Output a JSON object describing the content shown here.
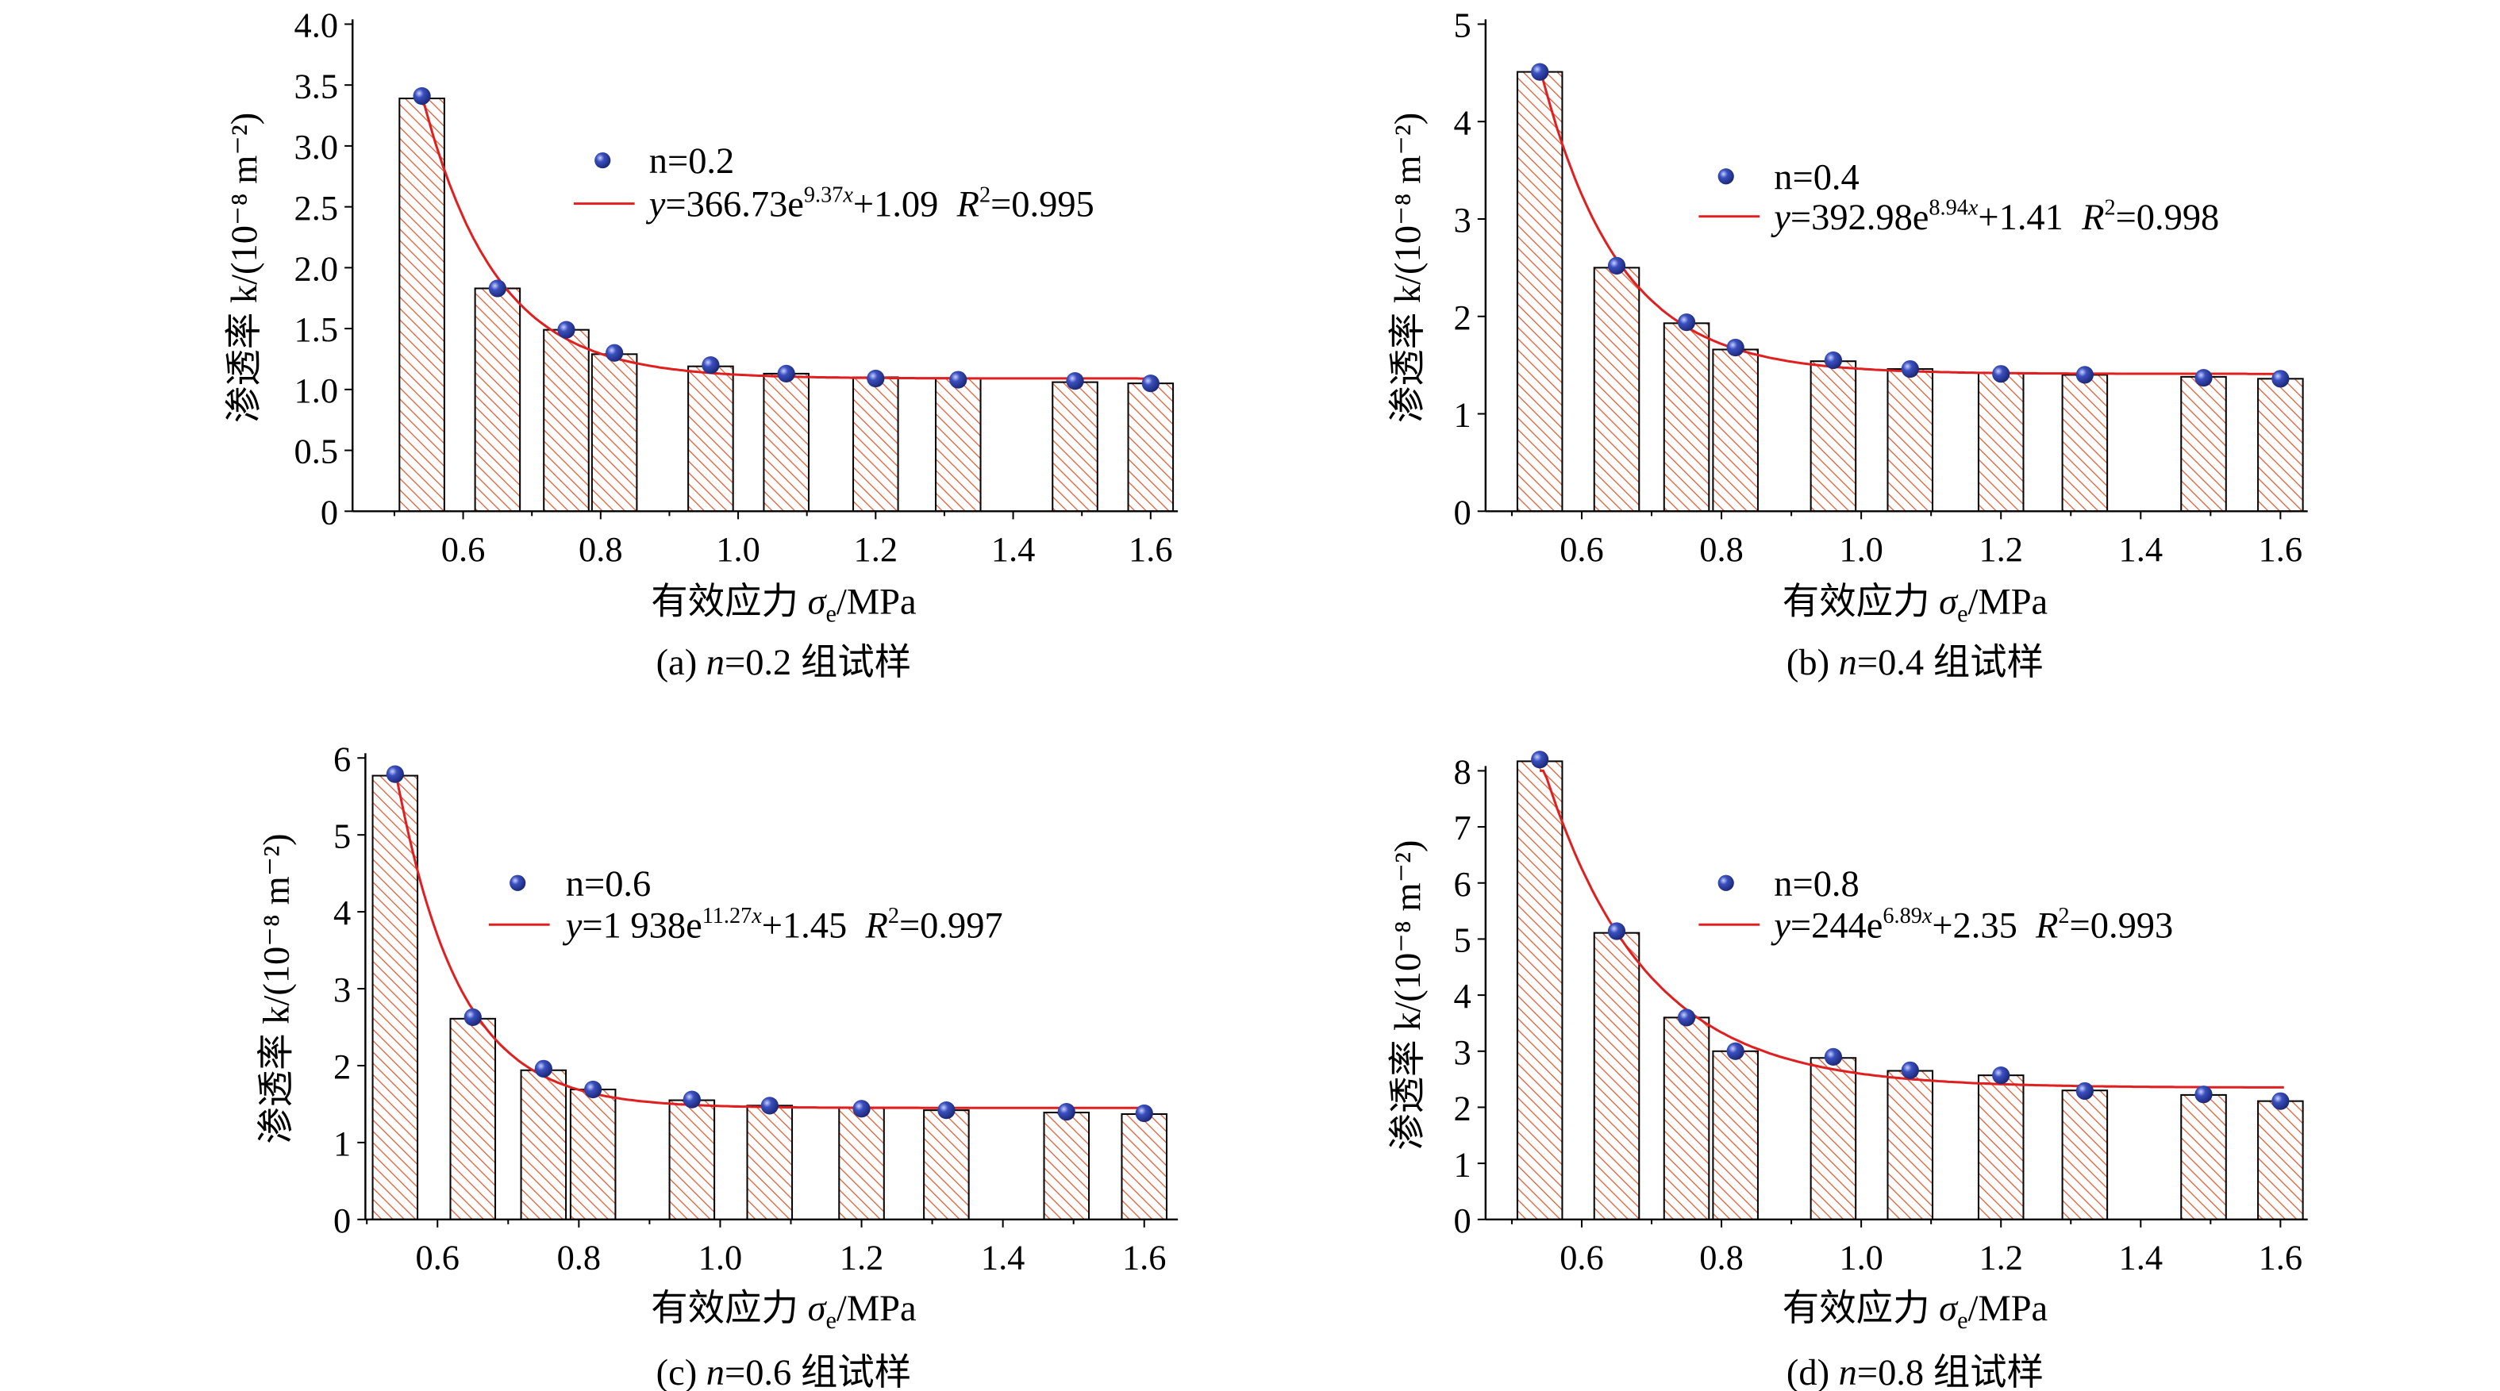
{
  "chart_data": [
    {
      "type": "bar+scatter+line",
      "panel": "a",
      "caption": "(a) n=0.2 组试样",
      "xlabel": "有效应力 σe/MPa",
      "ylabel": "渗透率 k/(10⁻⁸ m⁻²)",
      "xticks": [
        "0.6",
        "0.8",
        "1.0",
        "1.2",
        "1.4",
        "1.6"
      ],
      "yticks": [
        "0",
        "0.5",
        "1.0",
        "1.5",
        "2.0",
        "2.5",
        "3.0",
        "3.5",
        "4.0"
      ],
      "ylim": [
        0,
        4.0
      ],
      "x": [
        0.54,
        0.65,
        0.75,
        0.82,
        0.96,
        1.07,
        1.2,
        1.32,
        1.49,
        1.6
      ],
      "bars": [
        3.39,
        1.83,
        1.49,
        1.29,
        1.19,
        1.13,
        1.1,
        1.09,
        1.06,
        1.05
      ],
      "points": [
        3.41,
        1.83,
        1.49,
        1.3,
        1.2,
        1.13,
        1.09,
        1.08,
        1.07,
        1.05
      ],
      "legend_points": "n=0.2",
      "fit": {
        "coef": "366.73",
        "exp": "9.37",
        "const": "1.09",
        "r2": "0.995"
      },
      "colors": {
        "bar_hatch": "#e0603a",
        "points": "#2b3fa0",
        "fit": "#e02020"
      }
    },
    {
      "type": "bar+scatter+line",
      "panel": "b",
      "caption": "(b) n=0.4 组试样",
      "xlabel": "有效应力 σe/MPa",
      "ylabel": "渗透率 k/(10⁻⁸ m⁻²)",
      "xticks": [
        "0.6",
        "0.8",
        "1.0",
        "1.2",
        "1.4",
        "1.6"
      ],
      "yticks": [
        "0",
        "1",
        "2",
        "3",
        "4",
        "5"
      ],
      "ylim": [
        0,
        5
      ],
      "x": [
        0.54,
        0.65,
        0.75,
        0.82,
        0.96,
        1.07,
        1.2,
        1.32,
        1.49,
        1.6
      ],
      "bars": [
        4.51,
        2.5,
        1.93,
        1.66,
        1.54,
        1.46,
        1.42,
        1.4,
        1.38,
        1.36
      ],
      "points": [
        4.51,
        2.52,
        1.94,
        1.68,
        1.55,
        1.46,
        1.41,
        1.4,
        1.37,
        1.36
      ],
      "legend_points": "n=0.4",
      "fit": {
        "coef": "392.98",
        "exp": "8.94",
        "const": "1.41",
        "r2": "0.998"
      },
      "colors": {
        "bar_hatch": "#e0603a",
        "points": "#2b3fa0",
        "fit": "#e02020"
      }
    },
    {
      "type": "bar+scatter+line",
      "panel": "c",
      "caption": "(c) n=0.6 组试样",
      "xlabel": "有效应力 σe/MPa",
      "ylabel": "渗透率 k/(10⁻⁸ m⁻²)",
      "xticks": [
        "0.6",
        "0.8",
        "1.0",
        "1.2",
        "1.4",
        "1.6"
      ],
      "yticks": [
        "0",
        "1",
        "2",
        "3",
        "4",
        "5",
        "6"
      ],
      "ylim": [
        0,
        6
      ],
      "x": [
        0.54,
        0.65,
        0.75,
        0.82,
        0.96,
        1.07,
        1.2,
        1.32,
        1.49,
        1.6
      ],
      "bars": [
        5.77,
        2.61,
        1.94,
        1.69,
        1.55,
        1.48,
        1.45,
        1.42,
        1.39,
        1.37
      ],
      "points": [
        5.79,
        2.63,
        1.96,
        1.69,
        1.56,
        1.48,
        1.44,
        1.42,
        1.4,
        1.38
      ],
      "legend_points": "n=0.6",
      "fit": {
        "coef": "1 938",
        "exp": "11.27",
        "const": "1.45",
        "r2": "0.997"
      },
      "colors": {
        "bar_hatch": "#e0603a",
        "points": "#2b3fa0",
        "fit": "#e02020"
      }
    },
    {
      "type": "bar+scatter+line",
      "panel": "d",
      "caption": "(d) n=0.8 组试样",
      "xlabel": "有效应力 σe/MPa",
      "ylabel": "渗透率 k/(10⁻⁸ m⁻²)",
      "xticks": [
        "0.6",
        "0.8",
        "1.0",
        "1.2",
        "1.4",
        "1.6"
      ],
      "yticks": [
        "0",
        "1",
        "2",
        "3",
        "4",
        "5",
        "6",
        "7",
        "8"
      ],
      "ylim": [
        0,
        8
      ],
      "x": [
        0.54,
        0.65,
        0.75,
        0.82,
        0.96,
        1.07,
        1.2,
        1.32,
        1.49,
        1.6
      ],
      "bars": [
        8.17,
        5.11,
        3.6,
        3.0,
        2.88,
        2.65,
        2.57,
        2.3,
        2.22,
        2.11
      ],
      "points": [
        8.2,
        5.14,
        3.6,
        3.0,
        2.9,
        2.66,
        2.57,
        2.29,
        2.23,
        2.11
      ],
      "legend_points": "n=0.8",
      "fit": {
        "coef": "244",
        "exp": "6.89",
        "const": "2.35",
        "r2": "0.993"
      },
      "colors": {
        "bar_hatch": "#e0603a",
        "points": "#2b3fa0",
        "fit": "#e02020"
      }
    }
  ]
}
